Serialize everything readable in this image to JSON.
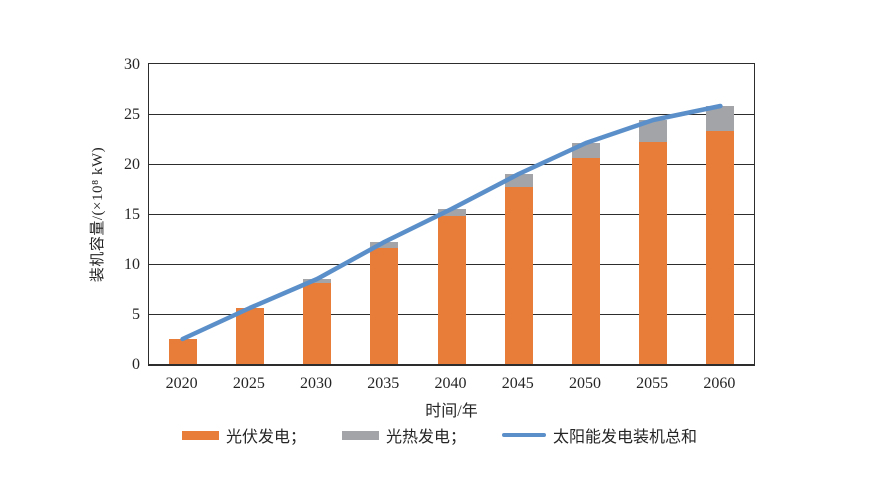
{
  "chart_data": {
    "type": "bar",
    "stacked": true,
    "title": "",
    "xlabel": "时间/年",
    "ylabel": "装机容量/(×10⁸ kW)",
    "categories": [
      "2020",
      "2025",
      "2030",
      "2035",
      "2040",
      "2045",
      "2050",
      "2055",
      "2060"
    ],
    "series": [
      {
        "name": "光伏发电",
        "type": "bar",
        "color": "#E87D3A",
        "values": [
          2.5,
          5.6,
          8.1,
          11.6,
          14.8,
          17.7,
          20.6,
          22.2,
          23.3
        ]
      },
      {
        "name": "光热发电",
        "type": "bar",
        "color": "#A2A4A8",
        "values": [
          0,
          0,
          0.4,
          0.6,
          0.7,
          1.3,
          1.5,
          2.2,
          2.5
        ]
      },
      {
        "name": "太阳能发电装机总和",
        "type": "line",
        "color": "#5B8FC9",
        "values": [
          2.5,
          5.6,
          8.5,
          12.2,
          15.5,
          19.0,
          22.1,
          24.4,
          25.8
        ]
      }
    ],
    "ylim": [
      0,
      30
    ],
    "ytick_step": 5,
    "grid": true,
    "legend_position": "bottom"
  },
  "axes": {
    "x_title": "时间/年",
    "y_title": "装机容量/(×10⁸ kW)"
  },
  "legend": {
    "pv_label": "光伏发电；",
    "csp_label": "光热发电；",
    "total_label": "太阳能发电装机总和"
  },
  "colors": {
    "pv": "#E87D3A",
    "csp": "#A2A4A8",
    "total_line": "#5B8FC9",
    "axis": "#2d2d2d",
    "background": "#ffffff"
  }
}
